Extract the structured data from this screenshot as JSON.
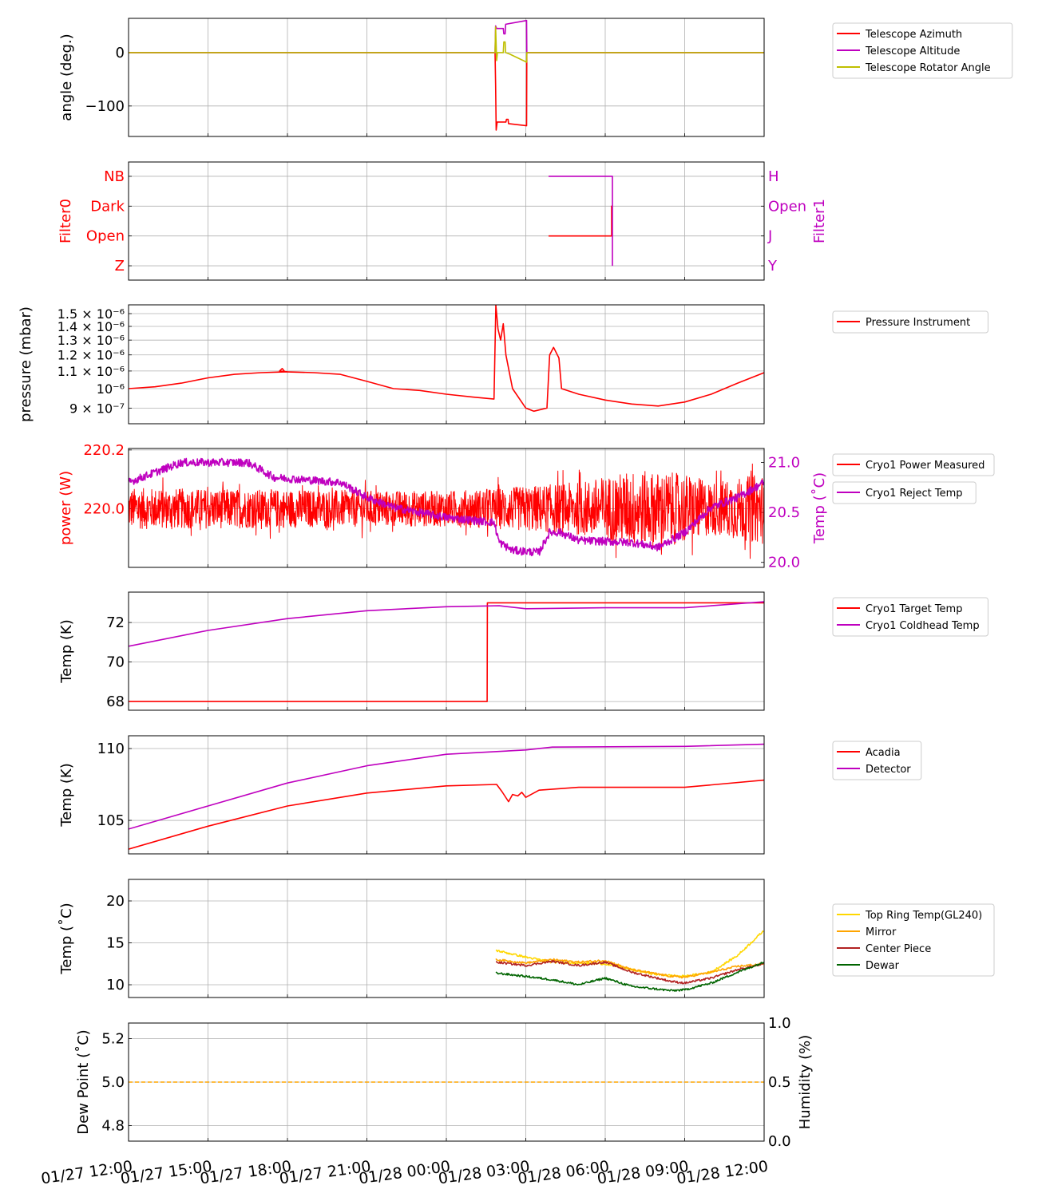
{
  "chart_data": [
    {
      "type": "line",
      "ylabel": "angle (deg.)",
      "ylim": [
        -157,
        64
      ],
      "yticks": [
        {
          "v": 0,
          "label": "0"
        },
        {
          "v": -100,
          "label": "−100"
        }
      ],
      "series": [
        {
          "name": "Telescope Azimuth",
          "color": "#ff0000",
          "points": [
            [
              0,
              0
            ],
            [
              13.84,
              0
            ],
            [
              13.86,
              -60
            ],
            [
              13.88,
              -145
            ],
            [
              13.92,
              -130
            ],
            [
              14.25,
              -130
            ],
            [
              14.27,
              -125
            ],
            [
              14.33,
              -125
            ],
            [
              14.35,
              -133
            ],
            [
              15.03,
              -137
            ],
            [
              15.04,
              0
            ],
            [
              24,
              0
            ]
          ]
        },
        {
          "name": "Telescope Altitude",
          "color": "#bf00bf",
          "points": [
            [
              0,
              0
            ],
            [
              13.84,
              0
            ],
            [
              13.86,
              50
            ],
            [
              13.9,
              45
            ],
            [
              14.15,
              45
            ],
            [
              14.17,
              35
            ],
            [
              14.22,
              35
            ],
            [
              14.24,
              53
            ],
            [
              15.03,
              60
            ],
            [
              15.04,
              0
            ],
            [
              24,
              0
            ]
          ]
        },
        {
          "name": "Telescope Rotator Angle",
          "color": "#bfbf00",
          "points": [
            [
              0,
              0
            ],
            [
              13.84,
              0
            ],
            [
              13.86,
              48
            ],
            [
              13.9,
              -15
            ],
            [
              13.93,
              0
            ],
            [
              14.15,
              0
            ],
            [
              14.17,
              20
            ],
            [
              14.22,
              20
            ],
            [
              14.24,
              0
            ],
            [
              14.4,
              -3
            ],
            [
              15.03,
              -18
            ],
            [
              15.04,
              0
            ],
            [
              24,
              0
            ]
          ]
        }
      ],
      "legend": "right"
    },
    {
      "type": "line",
      "ylabel": "Filter0",
      "ylabel_right": "Filter1",
      "ylim": [
        -0.48,
        3.48
      ],
      "left_categories": [
        "Z",
        "Open",
        "Dark",
        "NB"
      ],
      "right_categories": [
        "Y",
        "J",
        "Open",
        "H"
      ],
      "series": [
        {
          "name": "Filter0",
          "color": "#ff0000",
          "points": [
            [
              15.86,
              1
            ],
            [
              18.24,
              1
            ],
            [
              18.24,
              2
            ],
            [
              18.25,
              1
            ]
          ]
        },
        {
          "name": "Filter1",
          "color": "#bf00bf",
          "points": [
            [
              15.86,
              3
            ],
            [
              18.27,
              3
            ],
            [
              18.27,
              0
            ]
          ]
        }
      ]
    },
    {
      "type": "line",
      "scale": "log",
      "ylabel": "pressure (mbar)",
      "ylim": [
        8.27e-07,
        1.573e-06
      ],
      "yticks": [
        {
          "v": 1.5e-06,
          "label": "1.5 × 10⁻⁶"
        },
        {
          "v": 1.4e-06,
          "label": "1.4 × 10⁻⁶"
        },
        {
          "v": 1.3e-06,
          "label": "1.3 × 10⁻⁶"
        },
        {
          "v": 1.2e-06,
          "label": "1.2 × 10⁻⁶"
        },
        {
          "v": 1.1e-06,
          "label": "1.1 × 10⁻⁶"
        },
        {
          "v": 1e-06,
          "label": "10⁻⁶"
        },
        {
          "v": 9e-07,
          "label": "9 × 10⁻⁷"
        }
      ],
      "series": [
        {
          "name": "Pressure Instrument",
          "color": "#ff0000",
          "points": [
            [
              0,
              1e-06
            ],
            [
              1,
              1.01e-06
            ],
            [
              2,
              1.03e-06
            ],
            [
              3,
              1.06e-06
            ],
            [
              4,
              1.08e-06
            ],
            [
              5,
              1.09e-06
            ],
            [
              6,
              1.095e-06
            ],
            [
              5.7,
              1.1e-06
            ],
            [
              5.8,
              1.115e-06
            ],
            [
              5.9,
              1.095e-06
            ],
            [
              7,
              1.09e-06
            ],
            [
              8,
              1.08e-06
            ],
            [
              9,
              1.04e-06
            ],
            [
              10,
              1e-06
            ],
            [
              11,
              9.9e-07
            ],
            [
              12,
              9.7e-07
            ],
            [
              13,
              9.55e-07
            ],
            [
              13.8,
              9.45e-07
            ],
            [
              13.87,
              1.57e-06
            ],
            [
              13.95,
              1.38e-06
            ],
            [
              14.05,
              1.3e-06
            ],
            [
              14.15,
              1.42e-06
            ],
            [
              14.25,
              1.2e-06
            ],
            [
              14.5,
              1e-06
            ],
            [
              15,
              9e-07
            ],
            [
              15.3,
              8.85e-07
            ],
            [
              15.8,
              9e-07
            ],
            [
              15.9,
              1.2e-06
            ],
            [
              16.05,
              1.25e-06
            ],
            [
              16.25,
              1.18e-06
            ],
            [
              16.35,
              1e-06
            ],
            [
              17,
              9.7e-07
            ],
            [
              18,
              9.4e-07
            ],
            [
              19,
              9.2e-07
            ],
            [
              20,
              9.1e-07
            ],
            [
              21,
              9.3e-07
            ],
            [
              22,
              9.7e-07
            ],
            [
              23,
              1.03e-06
            ],
            [
              24,
              1.09e-06
            ]
          ]
        }
      ],
      "legend": "right"
    },
    {
      "type": "line",
      "ylabel": "power (W)",
      "ylabel_right": "Temp (˚C)",
      "ylim": [
        219.8,
        220.205
      ],
      "ylim_right": [
        19.95,
        21.14
      ],
      "yticks": [
        {
          "v": 220.2,
          "label": "220.2"
        },
        {
          "v": 220.0,
          "label": "220.0"
        }
      ],
      "yticks_right": [
        {
          "v": 21.0,
          "label": "21.0"
        },
        {
          "v": 20.5,
          "label": "20.5"
        },
        {
          "v": 20.0,
          "label": "20.0"
        }
      ],
      "series": [
        {
          "name": "Cryo1 Power Measured",
          "color": "#ff0000",
          "mean": 220.0,
          "noise": [
            [
              0,
              0.07
            ],
            [
              12,
              0.06
            ],
            [
              14,
              0.07
            ],
            [
              17,
              0.09
            ],
            [
              19,
              0.13
            ],
            [
              21,
              0.12
            ],
            [
              22,
              0.09
            ],
            [
              24,
              0.12
            ]
          ]
        },
        {
          "name": "Cryo1 Reject Temp",
          "color": "#bf00bf",
          "axis": "right",
          "noise_level": 0.04,
          "points": [
            [
              0,
              20.8
            ],
            [
              1,
              20.9
            ],
            [
              2,
              21.0
            ],
            [
              4.5,
              21.0
            ],
            [
              5.5,
              20.85
            ],
            [
              8,
              20.8
            ],
            [
              9,
              20.65
            ],
            [
              10,
              20.55
            ],
            [
              12,
              20.45
            ],
            [
              13.8,
              20.4
            ],
            [
              14,
              20.2
            ],
            [
              14.5,
              20.12
            ],
            [
              15.5,
              20.1
            ],
            [
              15.9,
              20.3
            ],
            [
              16.3,
              20.3
            ],
            [
              17,
              20.22
            ],
            [
              19,
              20.2
            ],
            [
              20,
              20.15
            ],
            [
              21,
              20.3
            ],
            [
              22,
              20.55
            ],
            [
              23,
              20.65
            ],
            [
              24,
              20.8
            ]
          ]
        }
      ],
      "legend": "right-split"
    },
    {
      "type": "line",
      "ylabel": "Temp (K)",
      "ylim": [
        67.56,
        73.54
      ],
      "yticks": [
        {
          "v": 72,
          "label": "72"
        },
        {
          "v": 70,
          "label": "70"
        },
        {
          "v": 68,
          "label": "68"
        }
      ],
      "series": [
        {
          "name": "Cryo1 Target Temp",
          "color": "#ff0000",
          "points": [
            [
              0,
              68
            ],
            [
              13.54,
              68
            ],
            [
              13.55,
              73
            ],
            [
              24,
              73
            ]
          ]
        },
        {
          "name": "Cryo1 Coldhead Temp",
          "color": "#bf00bf",
          "points": [
            [
              0,
              70.8
            ],
            [
              3,
              71.6
            ],
            [
              6,
              72.2
            ],
            [
              9,
              72.6
            ],
            [
              12,
              72.8
            ],
            [
              14,
              72.85
            ],
            [
              15,
              72.7
            ],
            [
              18,
              72.75
            ],
            [
              21,
              72.75
            ],
            [
              24,
              73.05
            ]
          ]
        }
      ],
      "legend": "right"
    },
    {
      "type": "line",
      "ylabel": "Temp (K)",
      "ylim": [
        102.67,
        110.89
      ],
      "yticks": [
        {
          "v": 110,
          "label": "110"
        },
        {
          "v": 105,
          "label": "105"
        }
      ],
      "series": [
        {
          "name": "Acadia",
          "color": "#ff0000",
          "points": [
            [
              0,
              103
            ],
            [
              3,
              104.6
            ],
            [
              6,
              106
            ],
            [
              9,
              106.9
            ],
            [
              12,
              107.4
            ],
            [
              13.9,
              107.5
            ],
            [
              14.1,
              107
            ],
            [
              14.35,
              106.3
            ],
            [
              14.5,
              106.8
            ],
            [
              14.7,
              106.7
            ],
            [
              14.85,
              106.95
            ],
            [
              15,
              106.6
            ],
            [
              15.5,
              107.1
            ],
            [
              17,
              107.3
            ],
            [
              21,
              107.3
            ],
            [
              24,
              107.8
            ]
          ]
        },
        {
          "name": "Detector",
          "color": "#bf00bf",
          "points": [
            [
              0,
              104.4
            ],
            [
              3,
              106
            ],
            [
              6,
              107.6
            ],
            [
              9,
              108.8
            ],
            [
              12,
              109.6
            ],
            [
              15,
              109.9
            ],
            [
              16,
              110.1
            ],
            [
              21,
              110.15
            ],
            [
              24,
              110.3
            ]
          ]
        }
      ],
      "legend": "right"
    },
    {
      "type": "line",
      "ylabel": "Temp (˚C)",
      "ylim": [
        8.48,
        22.57
      ],
      "yticks": [
        {
          "v": 20,
          "label": "20"
        },
        {
          "v": 15,
          "label": "15"
        },
        {
          "v": 10,
          "label": "10"
        }
      ],
      "series": [
        {
          "name": "Top Ring Temp(GL240)",
          "color": "#ffd700",
          "points": [
            [
              13.87,
              14.1
            ],
            [
              15,
              13.3
            ],
            [
              16,
              12.7
            ],
            [
              18,
              12.5
            ],
            [
              19,
              11.8
            ],
            [
              20,
              11.2
            ],
            [
              21,
              11.0
            ],
            [
              22,
              11.5
            ],
            [
              23,
              13.5
            ],
            [
              24,
              16.5
            ]
          ]
        },
        {
          "name": "Mirror",
          "color": "#ffa500",
          "points": [
            [
              13.87,
              13.0
            ],
            [
              15,
              12.6
            ],
            [
              16,
              13.0
            ],
            [
              17,
              12.7
            ],
            [
              18,
              12.9
            ],
            [
              19,
              11.8
            ],
            [
              20.5,
              11.0
            ],
            [
              21,
              10.9
            ],
            [
              22,
              11.5
            ],
            [
              23,
              12.2
            ],
            [
              24,
              12.5
            ]
          ]
        },
        {
          "name": "Center Piece",
          "color": "#b22222",
          "points": [
            [
              13.87,
              12.7
            ],
            [
              15,
              12.3
            ],
            [
              16,
              12.8
            ],
            [
              17,
              12.3
            ],
            [
              18,
              12.7
            ],
            [
              19,
              11.5
            ],
            [
              20.5,
              10.4
            ],
            [
              21,
              10.2
            ],
            [
              22,
              10.8
            ],
            [
              23,
              11.8
            ],
            [
              24,
              12.5
            ]
          ]
        },
        {
          "name": "Dewar",
          "color": "#006400",
          "points": [
            [
              13.87,
              11.4
            ],
            [
              15,
              11.0
            ],
            [
              16,
              10.6
            ],
            [
              17,
              10.0
            ],
            [
              18,
              10.8
            ],
            [
              19,
              9.8
            ],
            [
              20.5,
              9.3
            ],
            [
              21,
              9.4
            ],
            [
              22,
              10.2
            ],
            [
              23,
              11.5
            ],
            [
              24,
              12.7
            ]
          ]
        }
      ],
      "legend": "right"
    },
    {
      "type": "line",
      "ylabel": "Dew Point (˚C)",
      "ylabel_right": "Humidity (%)",
      "ylim": [
        4.728,
        5.272
      ],
      "ylim_right": [
        0,
        1
      ],
      "yticks": [
        {
          "v": 5.2,
          "label": "5.2"
        },
        {
          "v": 5.0,
          "label": "5.0"
        },
        {
          "v": 4.8,
          "label": "4.8"
        }
      ],
      "yticks_right": [
        {
          "v": 1,
          "label": "1.0"
        },
        {
          "v": 0.5,
          "label": "0.5"
        },
        {
          "v": 0,
          "label": "0.0"
        }
      ],
      "series": [
        {
          "name": "Dew Point",
          "color": "#ffa500",
          "dashed": true,
          "points": [
            [
              0,
              5.0
            ],
            [
              24,
              5.0
            ]
          ]
        }
      ]
    }
  ],
  "x_axis": {
    "range_hours": [
      0,
      24
    ],
    "tick_labels": [
      "01/27 12:00",
      "01/27 15:00",
      "01/27 18:00",
      "01/27 21:00",
      "01/28 00:00",
      "01/28 03:00",
      "01/28 06:00",
      "01/28 09:00",
      "01/28 12:00"
    ]
  }
}
